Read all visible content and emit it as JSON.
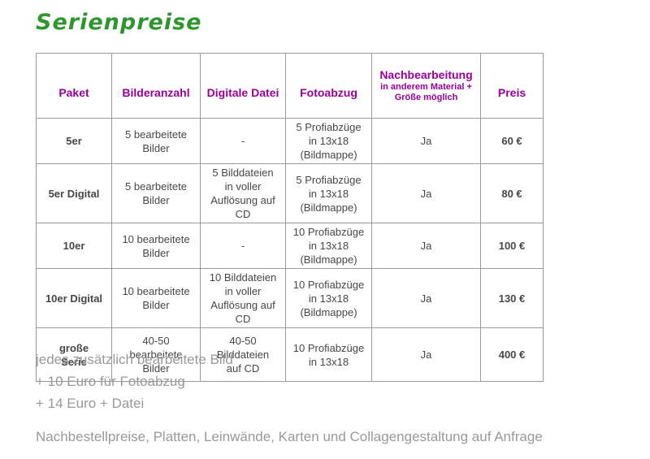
{
  "page": {
    "title": "Serienpreise"
  },
  "colors": {
    "title_green": "#2f962f",
    "header_purple": "#990099",
    "body_text": "#474747",
    "border_gray": "#9a9a9a",
    "notes_gray": "#999999"
  },
  "table": {
    "columns": [
      {
        "label": "Paket"
      },
      {
        "label": "Bilderanzahl"
      },
      {
        "label": "Digitale Datei"
      },
      {
        "label": "Fotoabzug"
      },
      {
        "label": "Nachbearbeitung",
        "sub": "in anderem Material +\nGröße möglich"
      },
      {
        "label": "Preis"
      }
    ],
    "rows": [
      {
        "cells": [
          "5er",
          "5 bearbeitete\nBilder",
          "-",
          "5 Profiabzüge\nin 13x18\n(Bildmappe)",
          "Ja",
          "60 €"
        ]
      },
      {
        "cells": [
          "5er Digital",
          "5 bearbeitete\nBilder",
          "5 Bilddateien\nin voller\nAuflösung auf CD",
          "5 Profiabzüge\nin 13x18\n(Bildmappe)",
          "Ja",
          "80 €"
        ]
      },
      {
        "cells": [
          "10er",
          "10 bearbeitete\nBilder",
          "-",
          "10 Profiabzüge\nin 13x18\n(Bildmappe)",
          "Ja",
          "100 €"
        ]
      },
      {
        "cells": [
          "10er Digital",
          "10 bearbeitete\nBilder",
          "10 Bilddateien\nin voller\nAuflösung auf CD",
          "10 Profiabzüge\nin 13x18\n(Bildmappe)",
          "Ja",
          "130 €"
        ]
      },
      {
        "cells": [
          "große\nSerie",
          "40-50\nbearbeitete\nBilder",
          "40-50\nBilddateien\nauf CD",
          "10 Profiabzüge\nin 13x18",
          "Ja",
          "400 €"
        ]
      }
    ]
  },
  "notes": {
    "lines": [
      "jedes zusätzlich bearbeitete Bild",
      "+ 10 Euro für Fotoabzug",
      "+ 14 Euro + Datei"
    ],
    "footer": "Nachbestellpreise, Platten, Leinwände, Karten und Collagengestaltung auf Anfrage"
  }
}
